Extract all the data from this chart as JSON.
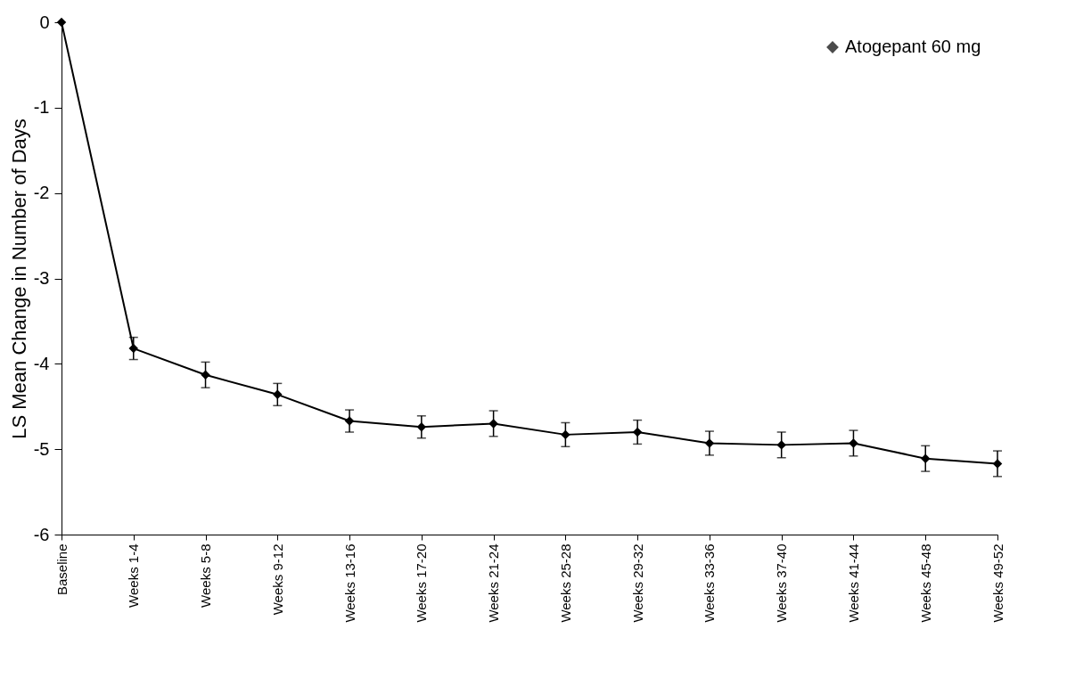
{
  "chart_data": {
    "type": "line",
    "ylabel": "LS Mean Change in Number of Days",
    "categories": [
      "Baseline",
      "Weeks 1-4",
      "Weeks 5-8",
      "Weeks 9-12",
      "Weeks 13-16",
      "Weeks 17-20",
      "Weeks 21-24",
      "Weeks 25-28",
      "Weeks 29-32",
      "Weeks 33-36",
      "Weeks 37-40",
      "Weeks 41-44",
      "Weeks 45-48",
      "Weeks 49-52"
    ],
    "series": [
      {
        "name": "Atogepant 60 mg",
        "color": "#000000",
        "values": [
          0,
          -3.82,
          -4.13,
          -4.36,
          -4.67,
          -4.74,
          -4.7,
          -4.83,
          -4.8,
          -4.93,
          -4.95,
          -4.93,
          -5.11,
          -5.17
        ],
        "errors": [
          null,
          0.13,
          0.15,
          0.13,
          0.13,
          0.13,
          0.15,
          0.14,
          0.14,
          0.14,
          0.15,
          0.15,
          0.15,
          0.15
        ]
      }
    ],
    "ylim": [
      -6,
      0
    ],
    "yticks": [
      -6,
      -5,
      -4,
      -3,
      -2,
      -1,
      0
    ],
    "grid": false,
    "legend": "top right",
    "marker": "diamond",
    "line_style": "solid"
  }
}
